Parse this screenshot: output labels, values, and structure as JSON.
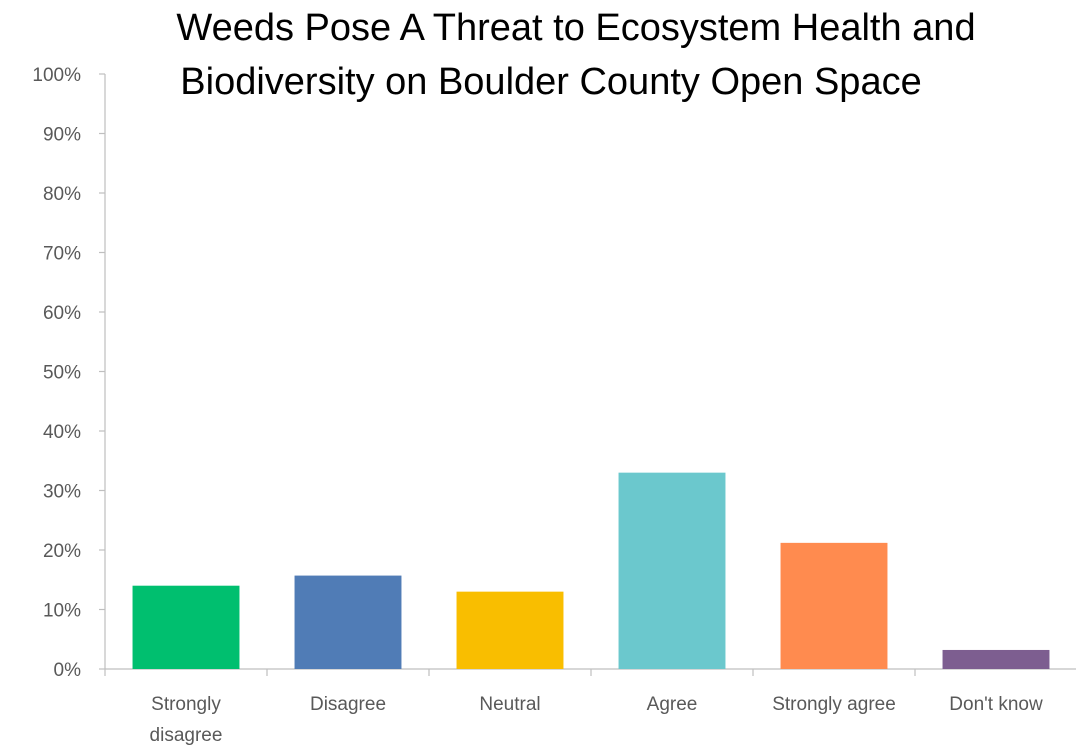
{
  "chart_data": {
    "type": "bar",
    "title_lines": [
      "Weeds Pose A Threat to Ecosystem Health and",
      "Biodiversity on Boulder County Open Space"
    ],
    "categories": [
      [
        "Strongly",
        "disagree"
      ],
      [
        "Disagree"
      ],
      [
        "Neutral"
      ],
      [
        "Agree"
      ],
      [
        "Strongly agree"
      ],
      [
        "Don't know"
      ]
    ],
    "values": [
      14,
      15.7,
      13,
      33,
      21.2,
      3.2
    ],
    "colors": [
      "#00BF6F",
      "#507CB6",
      "#F9BE00",
      "#6BC8CD",
      "#FF8B4F",
      "#7D5E90"
    ],
    "ylim": [
      0,
      100
    ],
    "y_ticks": [
      "0%",
      "10%",
      "20%",
      "30%",
      "40%",
      "50%",
      "60%",
      "70%",
      "80%",
      "90%",
      "100%"
    ],
    "grid": false,
    "legend": "none"
  }
}
